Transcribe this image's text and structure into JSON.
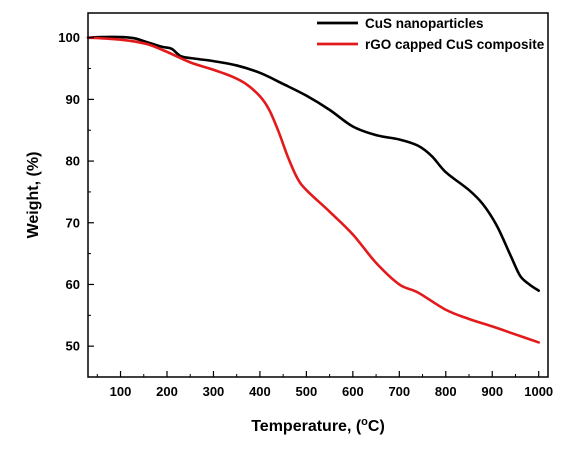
{
  "chart_data": {
    "type": "line",
    "xlabel_main": "Temperature, (",
    "xlabel_sup": "o",
    "xlabel_end": "C)",
    "ylabel": "Weight, (%)",
    "xlim": [
      30,
      1020
    ],
    "ylim": [
      45,
      104
    ],
    "x_ticks": [
      100,
      200,
      300,
      400,
      500,
      600,
      700,
      800,
      900,
      1000
    ],
    "y_ticks": [
      50,
      60,
      70,
      80,
      90,
      100
    ],
    "legend_position": "top-right",
    "series": [
      {
        "name": "CuS nanoparticles",
        "color": "#000000",
        "points": [
          [
            30,
            100
          ],
          [
            60,
            100.1
          ],
          [
            100,
            100.1
          ],
          [
            130,
            99.9
          ],
          [
            160,
            99.2
          ],
          [
            190,
            98.5
          ],
          [
            210,
            98.2
          ],
          [
            230,
            97.0
          ],
          [
            260,
            96.6
          ],
          [
            300,
            96.2
          ],
          [
            350,
            95.5
          ],
          [
            400,
            94.3
          ],
          [
            450,
            92.5
          ],
          [
            500,
            90.6
          ],
          [
            550,
            88.3
          ],
          [
            600,
            85.6
          ],
          [
            650,
            84.2
          ],
          [
            700,
            83.5
          ],
          [
            740,
            82.5
          ],
          [
            770,
            80.8
          ],
          [
            800,
            78.2
          ],
          [
            850,
            75.3
          ],
          [
            880,
            73.0
          ],
          [
            910,
            69.5
          ],
          [
            940,
            64.6
          ],
          [
            960,
            61.4
          ],
          [
            980,
            60.0
          ],
          [
            1000,
            59.0
          ]
        ]
      },
      {
        "name": "rGO capped CuS composite",
        "color": "#e31a1c",
        "points": [
          [
            30,
            100
          ],
          [
            80,
            99.8
          ],
          [
            120,
            99.5
          ],
          [
            160,
            98.9
          ],
          [
            200,
            97.7
          ],
          [
            250,
            96.0
          ],
          [
            300,
            94.8
          ],
          [
            340,
            93.7
          ],
          [
            370,
            92.5
          ],
          [
            400,
            90.5
          ],
          [
            420,
            88.3
          ],
          [
            440,
            84.8
          ],
          [
            460,
            80.7
          ],
          [
            480,
            77.3
          ],
          [
            500,
            75.3
          ],
          [
            550,
            71.8
          ],
          [
            600,
            68.1
          ],
          [
            650,
            63.5
          ],
          [
            700,
            60.0
          ],
          [
            740,
            58.7
          ],
          [
            800,
            55.9
          ],
          [
            850,
            54.4
          ],
          [
            900,
            53.2
          ],
          [
            950,
            51.9
          ],
          [
            1000,
            50.6
          ]
        ]
      }
    ]
  }
}
